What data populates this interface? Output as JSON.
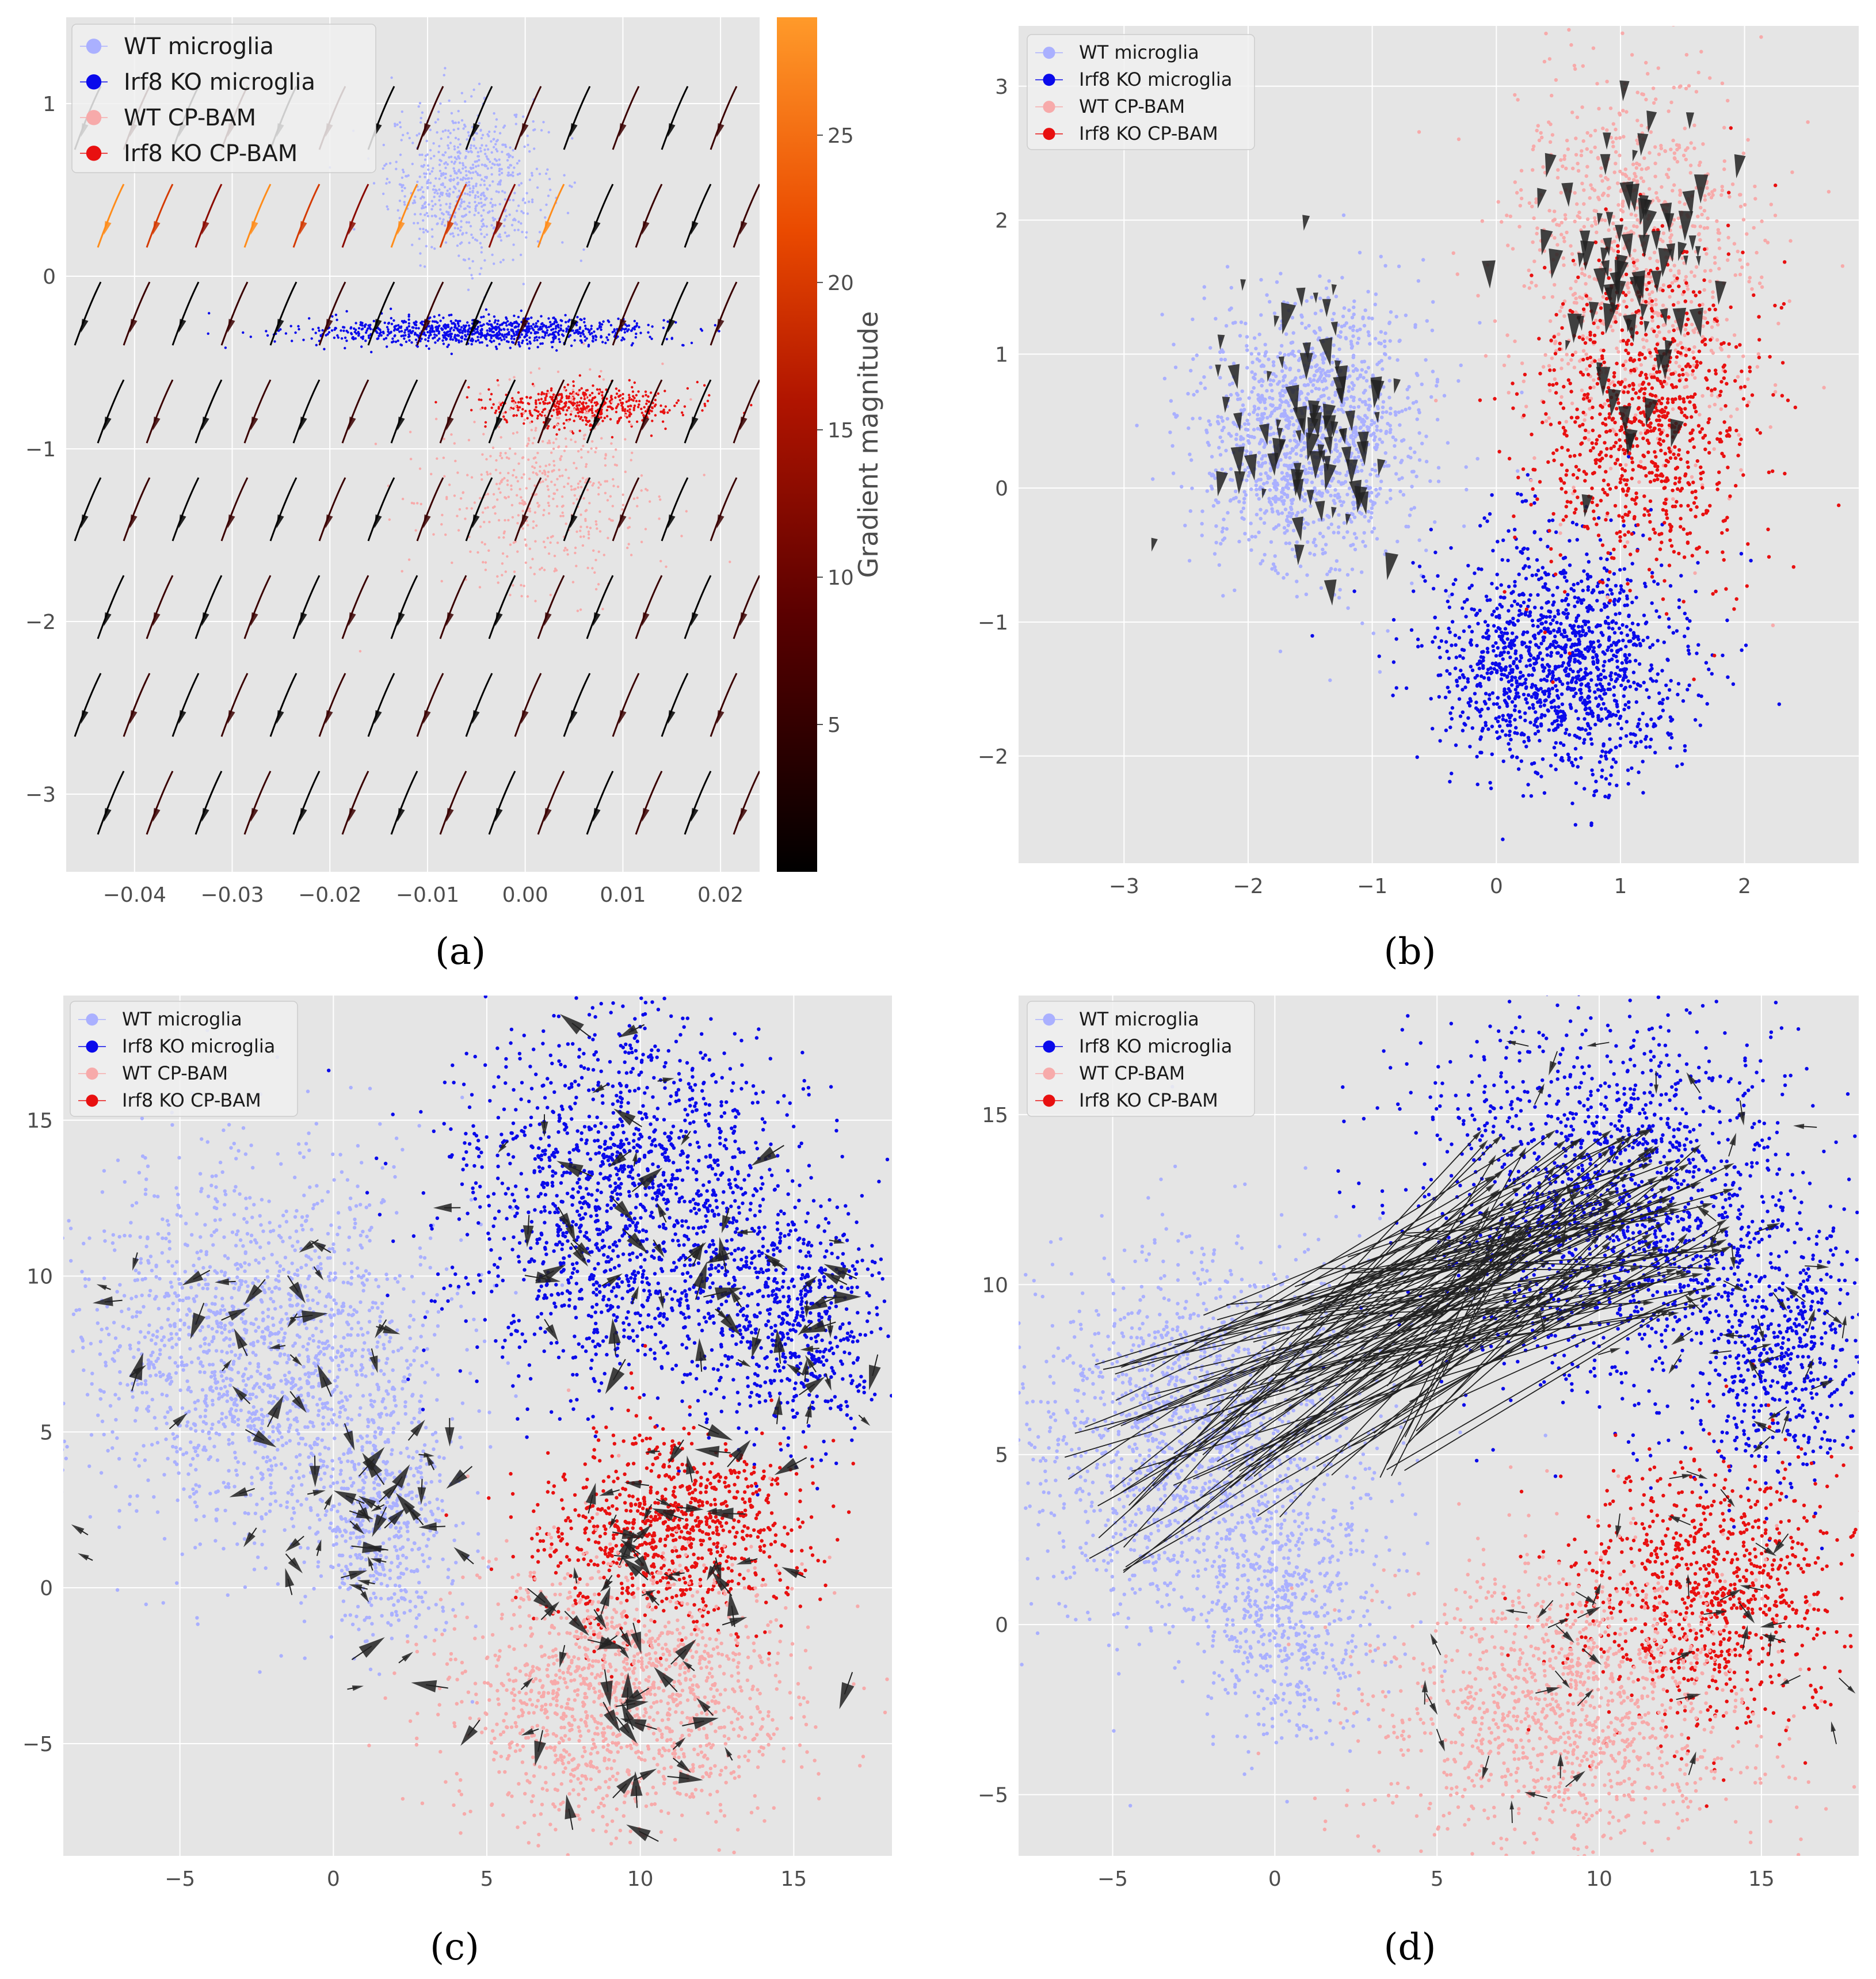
{
  "figure": {
    "legend_labels": [
      "WT microglia",
      "Irf8 KO microglia",
      "WT CP-BAM",
      "Irf8 KO CP-BAM"
    ],
    "colors": {
      "wt_microglia": "#aab0ff",
      "ko_microglia": "#0a0aeb",
      "wt_cpbam": "#f7aaaa",
      "ko_cpbam": "#e81010",
      "plot_bg": "#e5e5e5",
      "grid": "#ffffff",
      "arrow": "#222222"
    }
  },
  "chart_data": [
    {
      "panel": "(a)",
      "type": "scatter",
      "subtype": "scatter with streamlines colored by gradient magnitude",
      "xlim": [
        -0.047,
        0.024
      ],
      "ylim": [
        -3.45,
        1.5
      ],
      "xticks": [
        -0.04,
        -0.03,
        -0.02,
        -0.01,
        0.0,
        0.01,
        0.02
      ],
      "xtick_labels": [
        "−0.04",
        "−0.03",
        "−0.02",
        "−0.01",
        "0.00",
        "0.01",
        "0.02"
      ],
      "yticks": [
        1,
        0,
        -1,
        -2,
        -3
      ],
      "ytick_labels": [
        "1",
        "0",
        "−1",
        "−2",
        "−3"
      ],
      "grid": true,
      "legend_position": "top-left",
      "colorbar": {
        "label": "Gradient magnitude",
        "range": [
          0,
          29
        ],
        "ticks": [
          5,
          10,
          15,
          20,
          25
        ],
        "tick_labels": [
          "5",
          "10",
          "15",
          "20",
          "25"
        ],
        "colormap": "gist_heat"
      },
      "clusters": [
        {
          "series": "WT microglia",
          "cx": -0.006,
          "cy": 0.55,
          "sx": 0.004,
          "sy": 0.22,
          "n": 700
        },
        {
          "series": "Irf8 KO microglia",
          "cx": -0.004,
          "cy": -0.32,
          "sx": 0.009,
          "sy": 0.04,
          "n": 900
        },
        {
          "series": "Irf8 KO CP-BAM",
          "cx": 0.006,
          "cy": -0.75,
          "sx": 0.005,
          "sy": 0.06,
          "n": 500
        },
        {
          "series": "WT CP-BAM",
          "cx": 0.002,
          "cy": -1.25,
          "sx": 0.006,
          "sy": 0.3,
          "n": 500
        }
      ]
    },
    {
      "panel": "(b)",
      "type": "scatter",
      "subtype": "scatter with velocity arrows",
      "xlim": [
        -3.85,
        2.92
      ],
      "ylim": [
        -2.8,
        3.45
      ],
      "xticks": [
        -3,
        -2,
        -1,
        0,
        1,
        2
      ],
      "xtick_labels": [
        "−3",
        "−2",
        "−1",
        "0",
        "1",
        "2"
      ],
      "yticks": [
        3,
        2,
        1,
        0,
        -1,
        -2
      ],
      "ytick_labels": [
        "3",
        "2",
        "1",
        "0",
        "−1",
        "−2"
      ],
      "grid": true,
      "legend_position": "top-left",
      "clusters": [
        {
          "series": "WT microglia",
          "cx": -1.5,
          "cy": 0.4,
          "sx": 0.45,
          "sy": 0.5,
          "n": 1400
        },
        {
          "series": "Irf8 KO microglia",
          "cx": 0.5,
          "cy": -1.3,
          "sx": 0.5,
          "sy": 0.45,
          "n": 1400
        },
        {
          "series": "WT CP-BAM",
          "cx": 1.1,
          "cy": 1.7,
          "sx": 0.5,
          "sy": 0.7,
          "n": 900
        },
        {
          "series": "Irf8 KO CP-BAM",
          "cx": 1.2,
          "cy": 0.5,
          "sx": 0.45,
          "sy": 0.6,
          "n": 900
        }
      ]
    },
    {
      "panel": "(c)",
      "type": "scatter",
      "subtype": "scatter with velocity arrows",
      "xlim": [
        -8.8,
        18.2
      ],
      "ylim": [
        -8.6,
        19.0
      ],
      "xticks": [
        -5,
        0,
        5,
        10,
        15
      ],
      "xtick_labels": [
        "−5",
        "0",
        "5",
        "10",
        "15"
      ],
      "yticks": [
        15,
        10,
        5,
        0,
        -5
      ],
      "ytick_labels": [
        "15",
        "10",
        "5",
        "0",
        "−5"
      ],
      "grid": true,
      "legend_position": "top-left",
      "clusters": [
        {
          "series": "WT microglia",
          "cx": -2.5,
          "cy": 7.5,
          "sx": 3.0,
          "sy": 3.0,
          "n": 1700
        },
        {
          "series": "WT microglia",
          "cx": 1.5,
          "cy": 2.0,
          "sx": 1.2,
          "sy": 1.8,
          "n": 500
        },
        {
          "series": "Irf8 KO microglia",
          "cx": 9.5,
          "cy": 12.5,
          "sx": 2.8,
          "sy": 3.0,
          "n": 1600
        },
        {
          "series": "Irf8 KO microglia",
          "cx": 15.0,
          "cy": 8.5,
          "sx": 1.5,
          "sy": 2.0,
          "n": 600
        },
        {
          "series": "Irf8 KO CP-BAM",
          "cx": 11.0,
          "cy": 1.8,
          "sx": 2.0,
          "sy": 1.6,
          "n": 900
        },
        {
          "series": "WT CP-BAM",
          "cx": 9.5,
          "cy": -3.5,
          "sx": 2.8,
          "sy": 2.2,
          "n": 1400
        }
      ]
    },
    {
      "panel": "(d)",
      "type": "scatter",
      "subtype": "scatter with long transition arrows",
      "xlim": [
        -7.9,
        18.0
      ],
      "ylim": [
        -6.8,
        18.5
      ],
      "xticks": [
        -5,
        0,
        5,
        10,
        15
      ],
      "xtick_labels": [
        "−5",
        "0",
        "5",
        "10",
        "15"
      ],
      "yticks": [
        15,
        10,
        5,
        0,
        -5
      ],
      "ytick_labels": [
        "15",
        "10",
        "5",
        "0",
        "−5"
      ],
      "grid": true,
      "legend_position": "top-left",
      "clusters": [
        {
          "series": "WT microglia",
          "cx": -2.5,
          "cy": 5.5,
          "sx": 2.8,
          "sy": 2.8,
          "n": 1700
        },
        {
          "series": "WT microglia",
          "cx": 0.5,
          "cy": 0.0,
          "sx": 1.3,
          "sy": 1.8,
          "n": 500
        },
        {
          "series": "Irf8 KO microglia",
          "cx": 10.5,
          "cy": 12.5,
          "sx": 2.8,
          "sy": 2.8,
          "n": 1600
        },
        {
          "series": "Irf8 KO microglia",
          "cx": 15.5,
          "cy": 8.0,
          "sx": 1.5,
          "sy": 2.0,
          "n": 600
        },
        {
          "series": "Irf8 KO CP-BAM",
          "cx": 13.5,
          "cy": 1.0,
          "sx": 2.0,
          "sy": 2.0,
          "n": 900
        },
        {
          "series": "WT CP-BAM",
          "cx": 9.0,
          "cy": -2.5,
          "sx": 2.8,
          "sy": 2.2,
          "n": 1300
        }
      ]
    }
  ],
  "captions": [
    "(a)",
    "(b)",
    "(c)",
    "(d)"
  ]
}
